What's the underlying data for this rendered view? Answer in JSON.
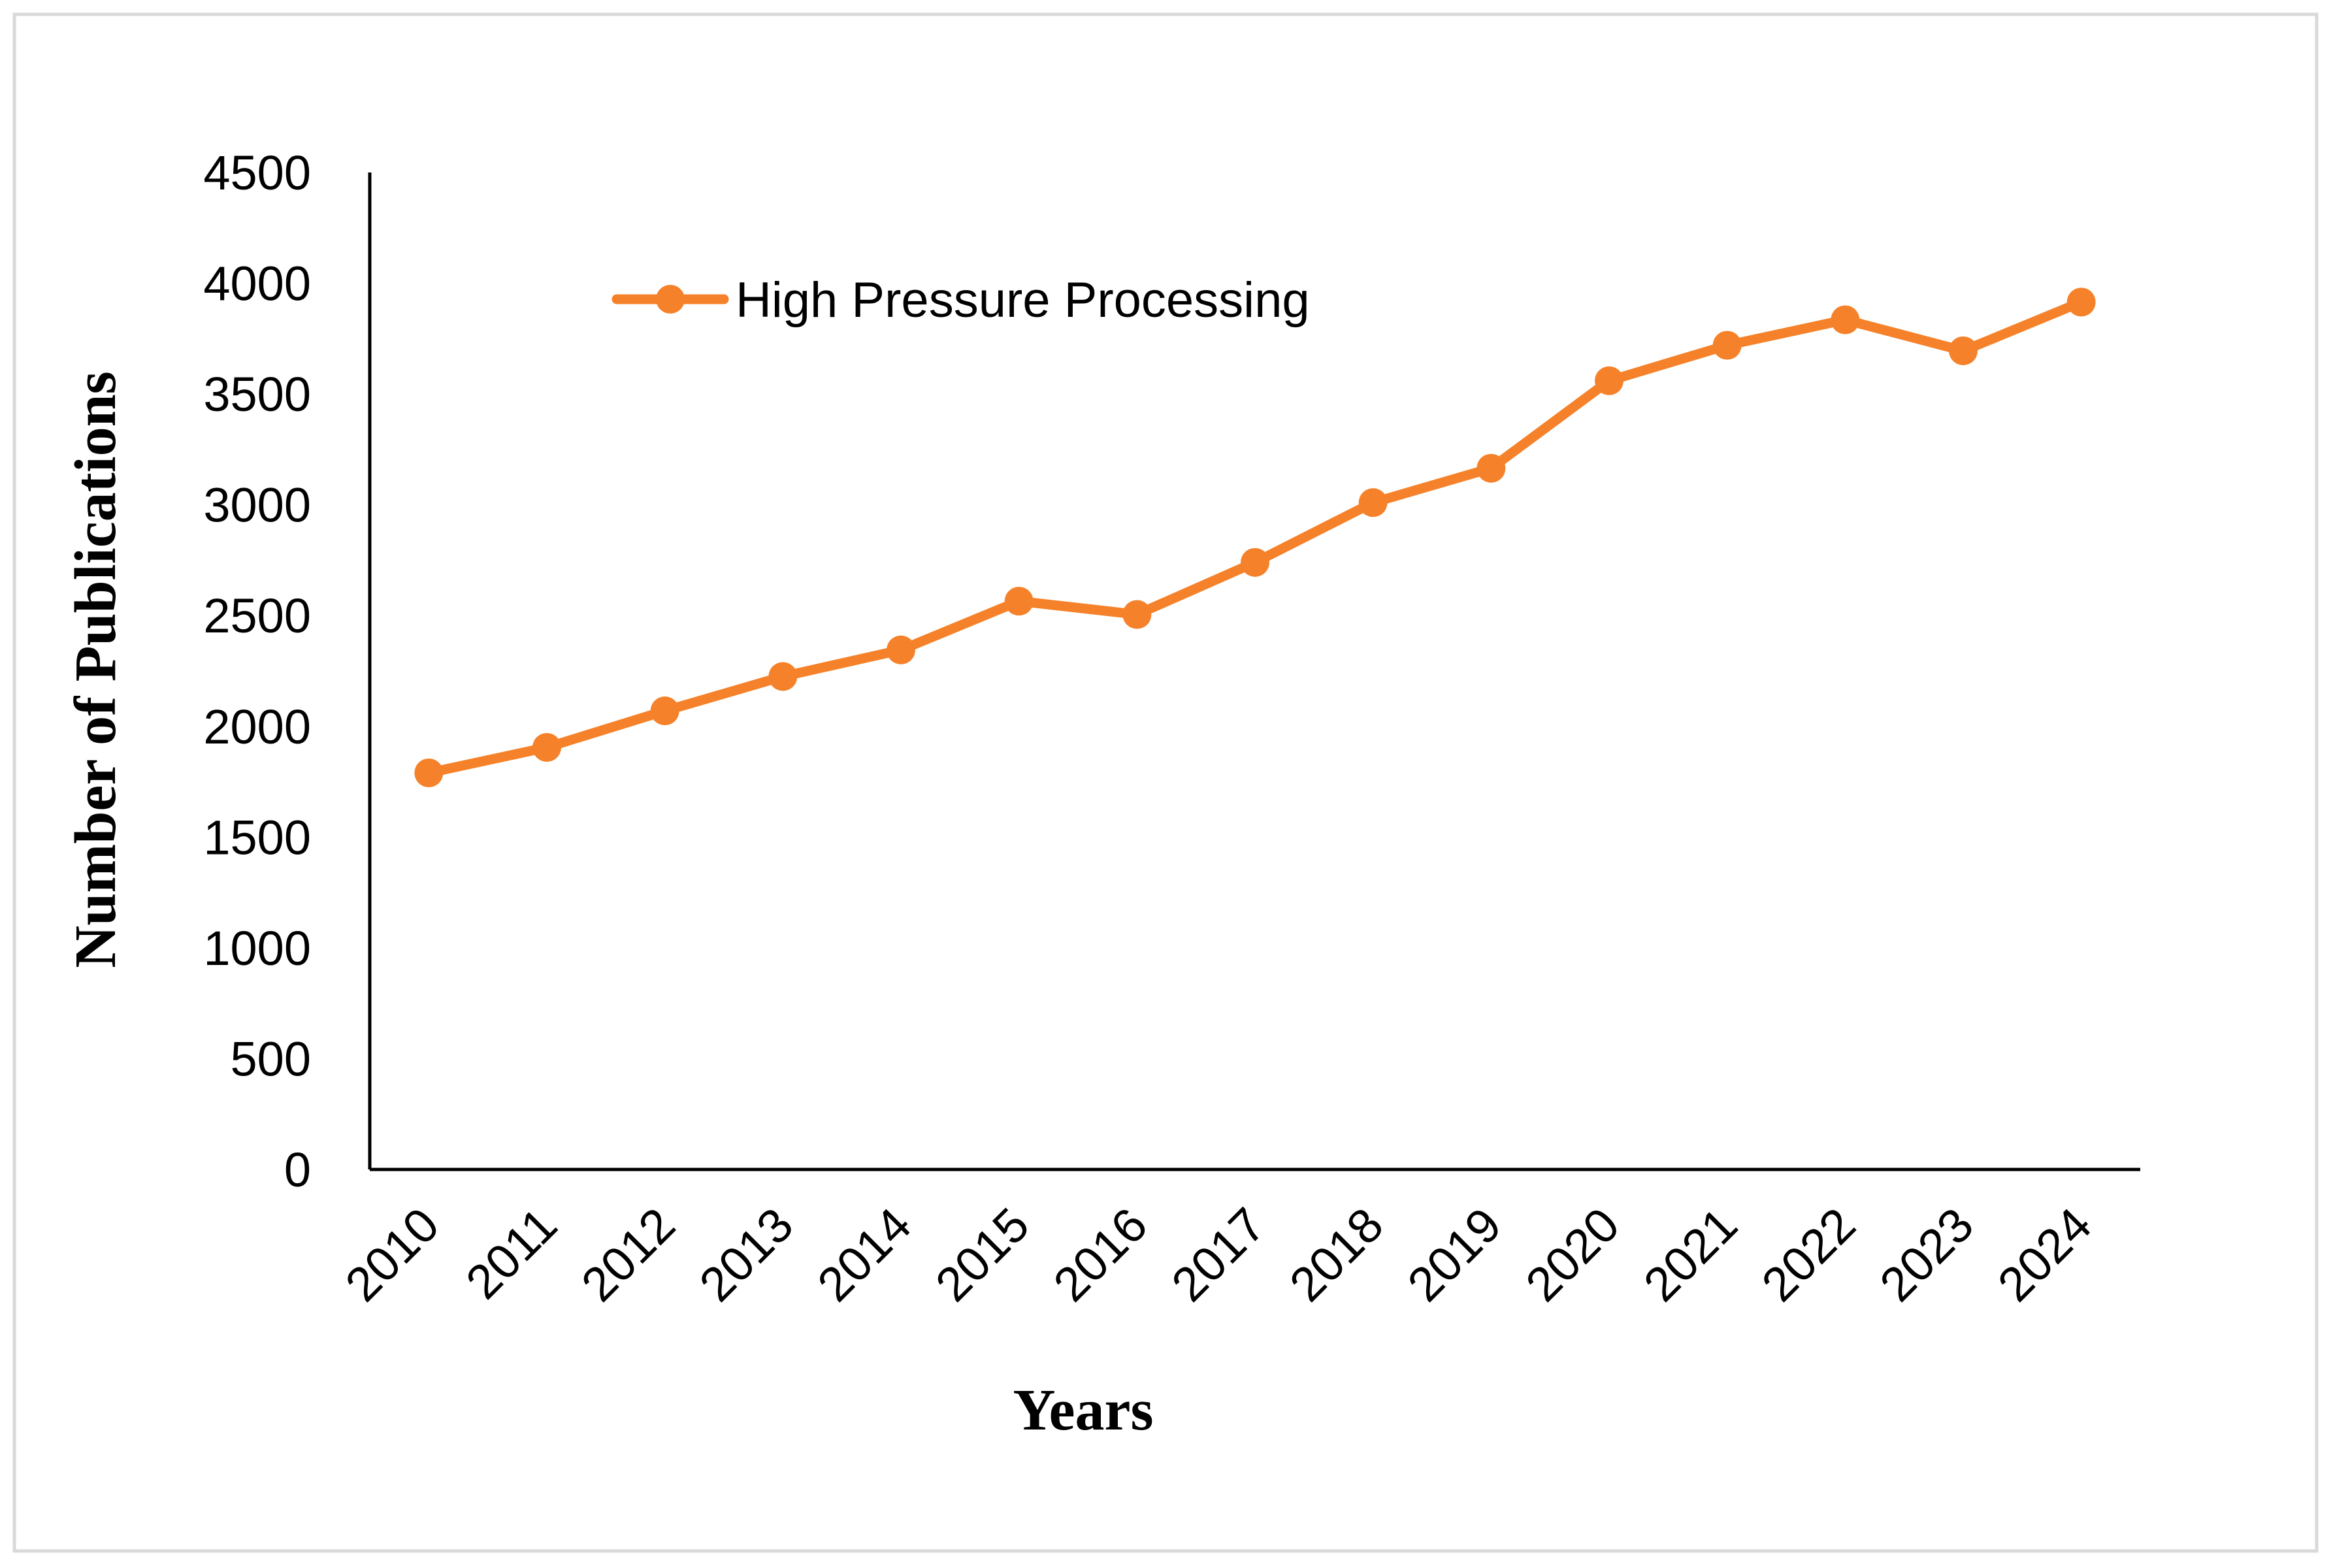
{
  "chart_data": {
    "type": "line",
    "title": "",
    "xlabel": "Years",
    "ylabel": "Number of Publications",
    "categories": [
      "2010",
      "2011",
      "2012",
      "2013",
      "2014",
      "2015",
      "2016",
      "2017",
      "2018",
      "2019",
      "2020",
      "2021",
      "2022",
      "2023",
      "2024"
    ],
    "series": [
      {
        "name": "High Pressure Processing",
        "color": "#F5822A",
        "values": [
          1790,
          1905,
          2070,
          2225,
          2345,
          2565,
          2505,
          2740,
          3010,
          3165,
          3560,
          3720,
          3835,
          3695,
          3915
        ]
      }
    ],
    "yticks": [
      "0",
      "500",
      "1000",
      "1500",
      "2000",
      "2500",
      "3000",
      "3500",
      "4000",
      "4500"
    ],
    "ylim": [
      0,
      4500
    ],
    "grid": false,
    "legend_position": "top-left"
  }
}
